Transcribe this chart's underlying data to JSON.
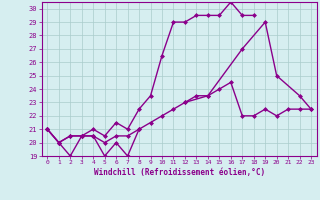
{
  "xlabel": "Windchill (Refroidissement éolien,°C)",
  "bg_color": "#d6eef0",
  "grid_color": "#aacccc",
  "line_color": "#8b008b",
  "xlim": [
    -0.5,
    23.5
  ],
  "ylim": [
    19,
    30.5
  ],
  "yticks": [
    19,
    20,
    21,
    22,
    23,
    24,
    25,
    26,
    27,
    28,
    29,
    30
  ],
  "xticks": [
    0,
    1,
    2,
    3,
    4,
    5,
    6,
    7,
    8,
    9,
    10,
    11,
    12,
    13,
    14,
    15,
    16,
    17,
    18,
    19,
    20,
    21,
    22,
    23
  ],
  "series": [
    {
      "x": [
        0,
        1,
        2,
        3,
        4,
        5,
        6,
        7,
        8
      ],
      "y": [
        21.0,
        20.0,
        19.0,
        20.5,
        20.5,
        19.0,
        20.0,
        19.0,
        21.0
      ],
      "marker": "D",
      "markersize": 2,
      "linewidth": 1.0
    },
    {
      "x": [
        0,
        1,
        2,
        3,
        4,
        5,
        6,
        7,
        8,
        9,
        10,
        11,
        12,
        13,
        14,
        15,
        16,
        17,
        18,
        19,
        20,
        21,
        22,
        23
      ],
      "y": [
        21.0,
        20.0,
        20.5,
        20.5,
        20.5,
        20.0,
        20.5,
        20.5,
        21.0,
        21.5,
        22.0,
        22.5,
        23.0,
        23.5,
        23.5,
        24.0,
        24.5,
        22.0,
        22.0,
        22.5,
        22.0,
        22.5,
        22.5,
        22.5
      ],
      "marker": "D",
      "markersize": 2,
      "linewidth": 1.0
    },
    {
      "x": [
        0,
        1,
        2,
        3,
        4,
        5,
        6,
        7,
        8,
        9,
        10,
        11,
        12,
        13,
        14,
        15,
        16,
        17,
        18
      ],
      "y": [
        21.0,
        20.0,
        20.5,
        20.5,
        21.0,
        20.5,
        21.5,
        21.0,
        22.5,
        23.5,
        26.5,
        29.0,
        29.0,
        29.5,
        29.5,
        29.5,
        30.5,
        29.5,
        29.5
      ],
      "marker": "D",
      "markersize": 2,
      "linewidth": 1.0
    },
    {
      "x": [
        12,
        14,
        17,
        19,
        20,
        22,
        23
      ],
      "y": [
        23.0,
        23.5,
        27.0,
        29.0,
        25.0,
        23.5,
        22.5
      ],
      "marker": "D",
      "markersize": 2,
      "linewidth": 1.0
    }
  ]
}
